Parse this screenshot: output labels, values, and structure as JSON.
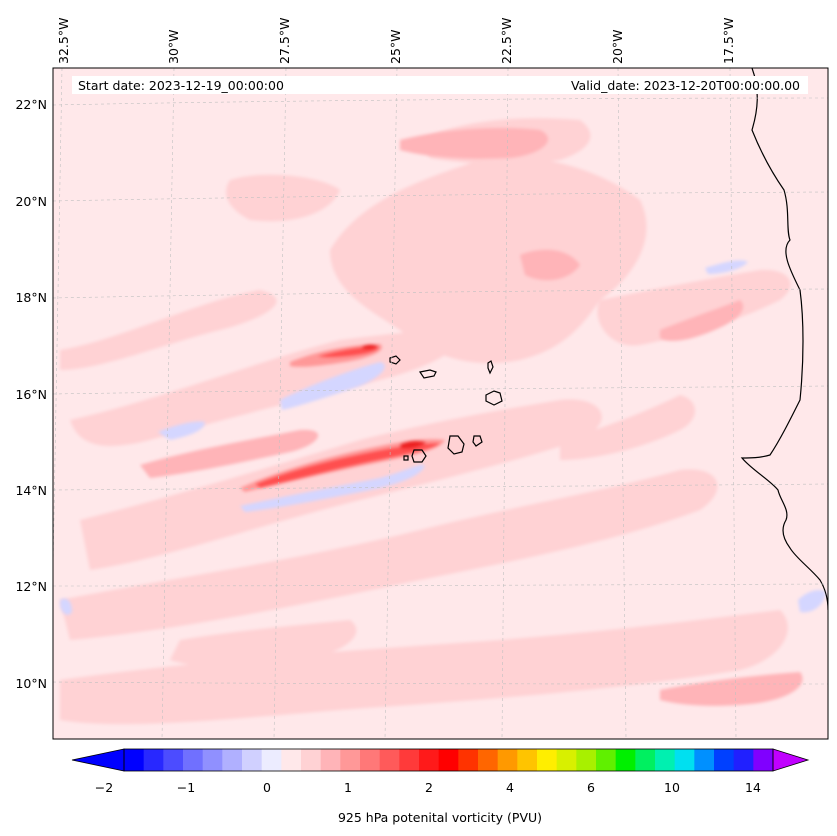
{
  "map": {
    "start_label": "Start date: 2023-12-19_00:00:00",
    "valid_label": "Valid_date: 2023-12-20T00:00:00.00",
    "lon_labels": [
      "32.5°W",
      "30°W",
      "27.5°W",
      "25°W",
      "22.5°W",
      "20°W",
      "17.5°W"
    ],
    "lat_labels": [
      "22°N",
      "20°N",
      "18°N",
      "16°N",
      "14°N",
      "12°N",
      "10°N"
    ],
    "colors": {
      "background": "#ffe8ea",
      "light_pink": "#ffd2d4",
      "mid_pink": "#ffb4b8",
      "red": "#ff5050",
      "dark_red": "#ee2020",
      "light_blue": "#d4d6ff",
      "coast": "#000000"
    }
  },
  "colorbar": {
    "title": "925 hPa potenital vorticity (PVU)",
    "tick_labels": [
      "−2",
      "−1",
      "0",
      "1",
      "2",
      "4",
      "6",
      "10",
      "14"
    ],
    "colors": [
      "#0000ff",
      "#2828ff",
      "#4c4cff",
      "#7070ff",
      "#9090ff",
      "#b0b0ff",
      "#d0d0ff",
      "#ececff",
      "#ffe8ea",
      "#ffd2d4",
      "#ffb4b8",
      "#ff9898",
      "#ff7878",
      "#ff5a5a",
      "#ff3a3a",
      "#ff1a1a",
      "#ff0000",
      "#ff3300",
      "#ff6600",
      "#ff9900",
      "#ffc400",
      "#ffee00",
      "#d8f000",
      "#a8f000",
      "#60f000",
      "#00f000",
      "#00f060",
      "#00f0b0",
      "#00e0f0",
      "#0090ff",
      "#0040ff",
      "#2020ff",
      "#8000ff"
    ]
  }
}
